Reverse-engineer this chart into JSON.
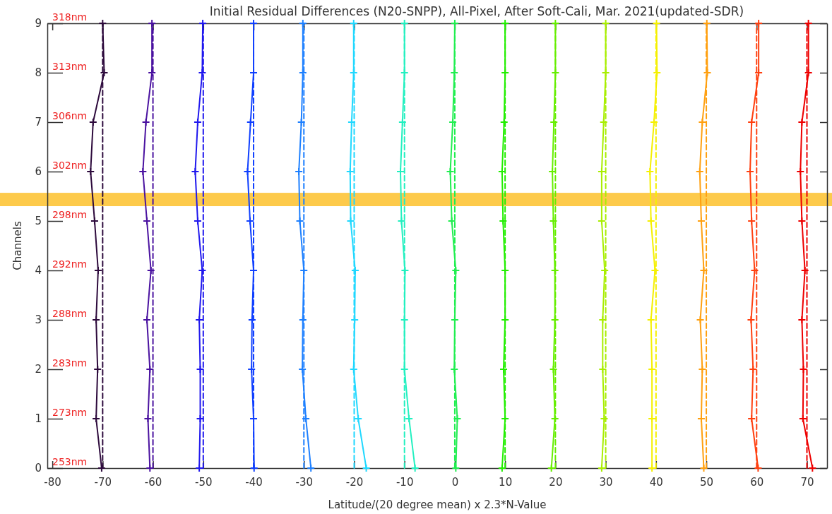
{
  "chart_data": {
    "type": "line",
    "title": "Initial Residual Differences (N20-SNPP), All-Pixel, After Soft-Cali, Mar. 2021(updated-SDR)",
    "xlabel": "Latitude/(20 degree mean) x 2.3*N-Value",
    "ylabel": "Channels",
    "xlim": [
      -81,
      74
    ],
    "xticks": [
      -80,
      -70,
      -60,
      -50,
      -40,
      -30,
      -20,
      -10,
      0,
      10,
      20,
      30,
      40,
      50,
      60,
      70
    ],
    "ylim": [
      0,
      9
    ],
    "yticks": [
      0,
      1,
      2,
      3,
      4,
      5,
      6,
      7,
      8,
      9
    ],
    "grid": false,
    "marker": "cross",
    "line_style": "solid",
    "bands": [
      {
        "axis": "y",
        "from": 5.3,
        "to": 5.57,
        "color": "#fdca4b"
      }
    ],
    "annotations": [
      "253nm",
      "273nm",
      "283nm",
      "288nm",
      "292nm",
      "298nm",
      "302nm",
      "306nm",
      "313nm",
      "318nm"
    ],
    "series": [
      {
        "color": "#2d0a3c",
        "x": [
          -70.2,
          -71.3,
          -71.0,
          -71.3,
          -70.9,
          -71.6,
          -72.4,
          -71.9,
          -69.7,
          -70.0
        ],
        "values": [
          0,
          1,
          2,
          3,
          4,
          5,
          6,
          7,
          8,
          9
        ]
      },
      {
        "color": "#2d0a3c",
        "marker": "none",
        "line_style": "dashed",
        "x": [
          -70,
          -70,
          -70,
          -70,
          -70,
          -70,
          -70,
          -70,
          -70,
          -70
        ],
        "values": [
          0,
          1,
          2,
          3,
          4,
          5,
          6,
          7,
          8,
          9
        ]
      },
      {
        "color": "#4a12a0",
        "x": [
          -60.6,
          -61.0,
          -60.6,
          -61.2,
          -60.4,
          -61.2,
          -62.0,
          -61.4,
          -60.2,
          -60.2
        ],
        "values": [
          0,
          1,
          2,
          3,
          4,
          5,
          6,
          7,
          8,
          9
        ]
      },
      {
        "color": "#4a12a0",
        "marker": "none",
        "line_style": "dashed",
        "x": [
          -60,
          -60,
          -60,
          -60,
          -60,
          -60,
          -60,
          -60,
          -60,
          -60
        ],
        "values": [
          0,
          1,
          2,
          3,
          4,
          5,
          6,
          7,
          8,
          9
        ]
      },
      {
        "color": "#2018ee",
        "x": [
          -50.8,
          -50.6,
          -50.6,
          -50.8,
          -50.2,
          -51.1,
          -51.6,
          -51.1,
          -50.2,
          -50.1
        ],
        "values": [
          0,
          1,
          2,
          3,
          4,
          5,
          6,
          7,
          8,
          9
        ]
      },
      {
        "color": "#2018ee",
        "marker": "none",
        "line_style": "dashed",
        "x": [
          -50,
          -50,
          -50,
          -50,
          -50,
          -50,
          -50,
          -50,
          -50,
          -50
        ],
        "values": [
          0,
          1,
          2,
          3,
          4,
          5,
          6,
          7,
          8,
          9
        ]
      },
      {
        "color": "#1040ff",
        "x": [
          -39.9,
          -40.0,
          -40.4,
          -40.3,
          -40.0,
          -40.7,
          -41.2,
          -40.6,
          -40.0,
          -40.0
        ],
        "values": [
          0,
          1,
          2,
          3,
          4,
          5,
          6,
          7,
          8,
          9
        ]
      },
      {
        "color": "#1040ff",
        "marker": "none",
        "line_style": "dashed",
        "x": [
          -40,
          -40,
          -40,
          -40,
          -40,
          -40,
          -40,
          -40,
          -40,
          -40
        ],
        "values": [
          0,
          1,
          2,
          3,
          4,
          5,
          6,
          7,
          8,
          9
        ]
      },
      {
        "color": "#1e80ff",
        "x": [
          -28.6,
          -29.6,
          -30.3,
          -30.2,
          -30.0,
          -30.8,
          -31.0,
          -30.5,
          -30.2,
          -30.2
        ],
        "values": [
          0,
          1,
          2,
          3,
          4,
          5,
          6,
          7,
          8,
          9
        ]
      },
      {
        "color": "#1e80ff",
        "marker": "none",
        "line_style": "dashed",
        "x": [
          -30,
          -30,
          -30,
          -30,
          -30,
          -30,
          -30,
          -30,
          -30,
          -30
        ],
        "values": [
          0,
          1,
          2,
          3,
          4,
          5,
          6,
          7,
          8,
          9
        ]
      },
      {
        "color": "#20d8ff",
        "x": [
          -17.6,
          -19.2,
          -20.1,
          -19.9,
          -19.8,
          -20.7,
          -20.8,
          -20.5,
          -20.1,
          -20.1
        ],
        "values": [
          0,
          1,
          2,
          3,
          4,
          5,
          6,
          7,
          8,
          9
        ]
      },
      {
        "color": "#20d8ff",
        "marker": "none",
        "line_style": "dashed",
        "x": [
          -20,
          -20,
          -20,
          -20,
          -20,
          -20,
          -20,
          -20,
          -20,
          -20
        ],
        "values": [
          0,
          1,
          2,
          3,
          4,
          5,
          6,
          7,
          8,
          9
        ]
      },
      {
        "color": "#22f0c0",
        "x": [
          -7.9,
          -9.1,
          -10.0,
          -10.0,
          -9.9,
          -10.6,
          -10.8,
          -10.4,
          -10.0,
          -10.0
        ],
        "values": [
          0,
          1,
          2,
          3,
          4,
          5,
          6,
          7,
          8,
          9
        ]
      },
      {
        "color": "#22f0c0",
        "marker": "none",
        "line_style": "dashed",
        "x": [
          -10,
          -10,
          -10,
          -10,
          -10,
          -10,
          -10,
          -10,
          -10,
          -10
        ],
        "values": [
          0,
          1,
          2,
          3,
          4,
          5,
          6,
          7,
          8,
          9
        ]
      },
      {
        "color": "#20ee50",
        "x": [
          0.2,
          0.5,
          -0.1,
          0.0,
          0.2,
          -0.6,
          -0.9,
          -0.4,
          -0.1,
          0.0
        ],
        "values": [
          0,
          1,
          2,
          3,
          4,
          5,
          6,
          7,
          8,
          9
        ]
      },
      {
        "color": "#20ee50",
        "marker": "none",
        "line_style": "dashed",
        "x": [
          0,
          0,
          0,
          0,
          0,
          0,
          0,
          0,
          0,
          0
        ],
        "values": [
          0,
          1,
          2,
          3,
          4,
          5,
          6,
          7,
          8,
          9
        ]
      },
      {
        "color": "#22ee00",
        "x": [
          9.4,
          10.0,
          9.7,
          10.0,
          10.0,
          9.6,
          9.4,
          9.8,
          10.0,
          10.0
        ],
        "values": [
          0,
          1,
          2,
          3,
          4,
          5,
          6,
          7,
          8,
          9
        ]
      },
      {
        "color": "#22ee00",
        "marker": "none",
        "line_style": "dashed",
        "x": [
          10,
          10,
          10,
          10,
          10,
          10,
          10,
          10,
          10,
          10
        ],
        "values": [
          0,
          1,
          2,
          3,
          4,
          5,
          6,
          7,
          8,
          9
        ]
      },
      {
        "color": "#66ee00",
        "x": [
          19.2,
          19.9,
          19.6,
          19.9,
          19.9,
          19.6,
          19.4,
          19.7,
          20.0,
          20.0
        ],
        "values": [
          0,
          1,
          2,
          3,
          4,
          5,
          6,
          7,
          8,
          9
        ]
      },
      {
        "color": "#66ee00",
        "marker": "none",
        "line_style": "dashed",
        "x": [
          20,
          20,
          20,
          20,
          20,
          20,
          20,
          20,
          20,
          20
        ],
        "values": [
          0,
          1,
          2,
          3,
          4,
          5,
          6,
          7,
          8,
          9
        ]
      },
      {
        "color": "#a8ee00",
        "x": [
          29.2,
          29.7,
          29.4,
          29.4,
          29.8,
          29.2,
          29.2,
          29.6,
          30.0,
          30.0
        ],
        "values": [
          0,
          1,
          2,
          3,
          4,
          5,
          6,
          7,
          8,
          9
        ]
      },
      {
        "color": "#a8ee00",
        "marker": "none",
        "line_style": "dashed",
        "x": [
          30,
          30,
          30,
          30,
          30,
          30,
          30,
          30,
          30,
          30
        ],
        "values": [
          0,
          1,
          2,
          3,
          4,
          5,
          6,
          7,
          8,
          9
        ]
      },
      {
        "color": "#f5f000",
        "x": [
          39.2,
          39.2,
          39.2,
          39.0,
          39.8,
          39.0,
          38.8,
          39.6,
          40.2,
          40.1
        ],
        "values": [
          0,
          1,
          2,
          3,
          4,
          5,
          6,
          7,
          8,
          9
        ]
      },
      {
        "color": "#f5f000",
        "marker": "none",
        "line_style": "dashed",
        "x": [
          40,
          40,
          40,
          40,
          40,
          40,
          40,
          40,
          40,
          40
        ],
        "values": [
          0,
          1,
          2,
          3,
          4,
          5,
          6,
          7,
          8,
          9
        ]
      },
      {
        "color": "#ffa010",
        "x": [
          49.5,
          49.0,
          49.2,
          48.8,
          49.5,
          49.0,
          48.7,
          49.2,
          50.2,
          50.1
        ],
        "values": [
          0,
          1,
          2,
          3,
          4,
          5,
          6,
          7,
          8,
          9
        ]
      },
      {
        "color": "#ffa010",
        "marker": "none",
        "line_style": "dashed",
        "x": [
          50,
          50,
          50,
          50,
          50,
          50,
          50,
          50,
          50,
          50
        ],
        "values": [
          0,
          1,
          2,
          3,
          4,
          5,
          6,
          7,
          8,
          9
        ]
      },
      {
        "color": "#ff4010",
        "x": [
          60.3,
          59.0,
          59.3,
          58.9,
          59.6,
          59.0,
          58.7,
          59.0,
          60.4,
          60.4
        ],
        "values": [
          0,
          1,
          2,
          3,
          4,
          5,
          6,
          7,
          8,
          9
        ]
      },
      {
        "color": "#ff4010",
        "marker": "none",
        "line_style": "dashed",
        "x": [
          60,
          60,
          60,
          60,
          60,
          60,
          60,
          60,
          60,
          60
        ],
        "values": [
          0,
          1,
          2,
          3,
          4,
          5,
          6,
          7,
          8,
          9
        ]
      },
      {
        "color": "#ee0000",
        "x": [
          71.1,
          69.2,
          69.3,
          69.0,
          69.6,
          69.0,
          68.7,
          69.0,
          70.3,
          70.3
        ],
        "values": [
          0,
          1,
          2,
          3,
          4,
          5,
          6,
          7,
          8,
          9
        ]
      },
      {
        "color": "#ee0000",
        "marker": "none",
        "line_style": "dashed",
        "x": [
          70,
          70,
          70,
          70,
          70,
          70,
          70,
          70,
          70,
          70
        ],
        "values": [
          0,
          1,
          2,
          3,
          4,
          5,
          6,
          7,
          8,
          9
        ]
      }
    ]
  }
}
